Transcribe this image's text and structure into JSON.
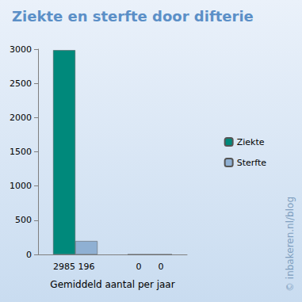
{
  "chart_data": {
    "type": "bar",
    "title": "Ziekte en sterfte door difterie",
    "categories": [
      null,
      null
    ],
    "series": [
      {
        "name": "Ziekte",
        "color": "#00897b",
        "values": [
          2985,
          0
        ]
      },
      {
        "name": "Sterfte",
        "color": "#8fb0d3",
        "values": [
          196,
          0
        ]
      }
    ],
    "xlabel": "Gemiddeld aantal per jaar",
    "ylim": [
      0,
      3000
    ],
    "yticks": [
      0,
      500,
      1000,
      1500,
      2000,
      2500,
      3000
    ],
    "grid": false,
    "legend": "right",
    "data_labels": true,
    "annotations": [
      "© inbakeren.nl/blog"
    ]
  }
}
